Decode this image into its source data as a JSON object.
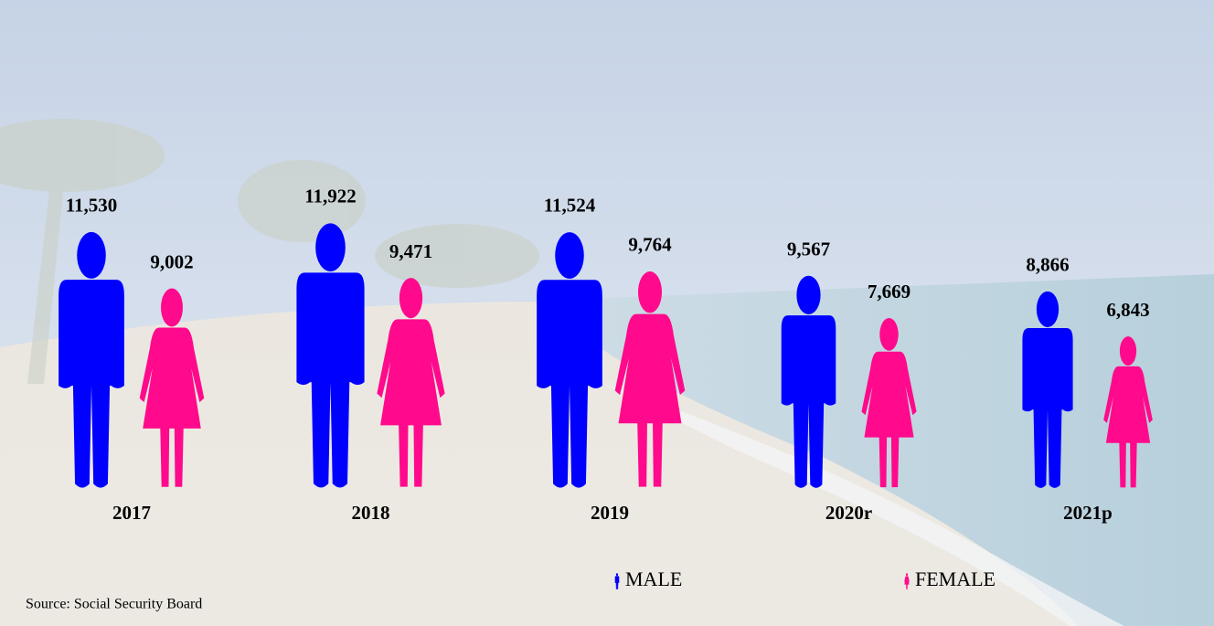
{
  "chart_data": {
    "type": "bar",
    "categories": [
      "2017",
      "2018",
      "2019",
      "2020r",
      "2021p"
    ],
    "series": [
      {
        "name": "MALE",
        "color": "#0000ff",
        "values": [
          11530,
          11922,
          11524,
          9567,
          8866
        ],
        "value_labels": [
          "11,530",
          "11,922",
          "11,524",
          "9,567",
          "8,866"
        ]
      },
      {
        "name": "FEMALE",
        "color": "#ff0a8c",
        "values": [
          9002,
          9471,
          9764,
          7669,
          6843
        ],
        "value_labels": [
          "9,002",
          "9,471",
          "9,764",
          "7,669",
          "6,843"
        ]
      }
    ],
    "source": "Source: Social Security Board"
  }
}
